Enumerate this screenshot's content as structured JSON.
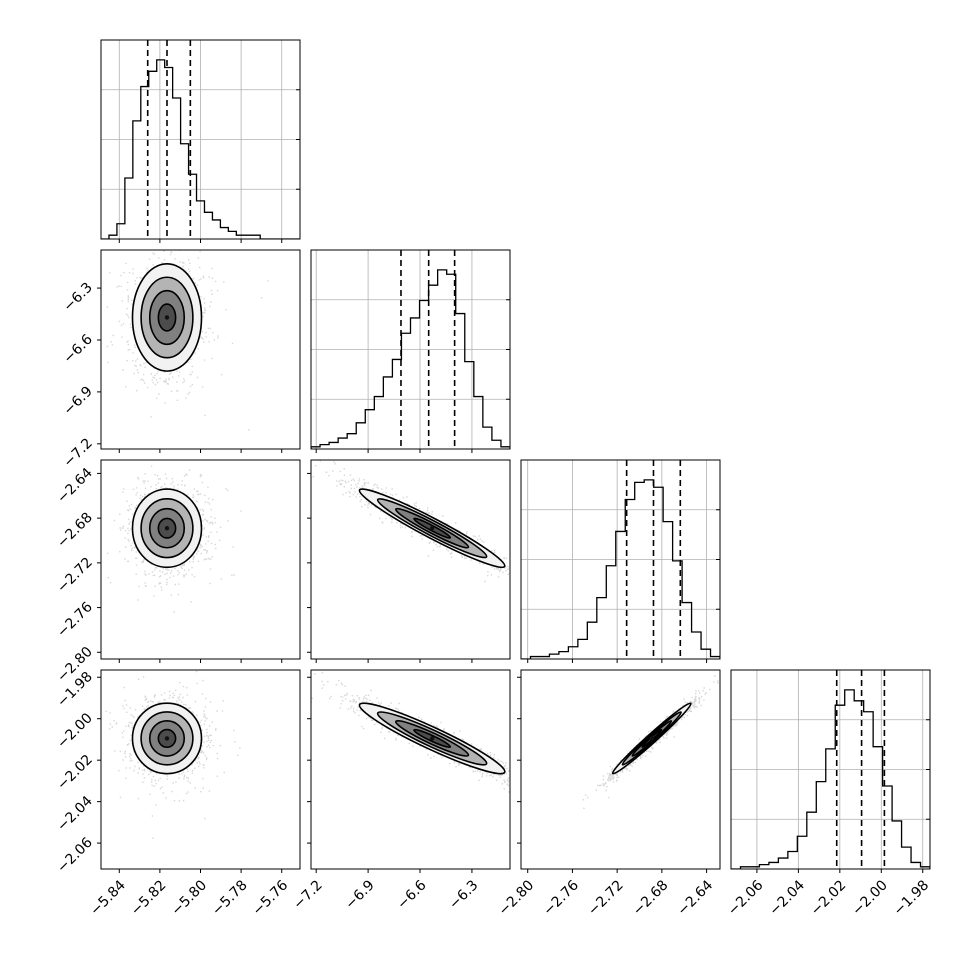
{
  "chart_data": {
    "type": "scatter",
    "subtype": "corner",
    "title": "",
    "grid": true,
    "parameters": [
      {
        "ticks": [
          -5.84,
          -5.82,
          -5.8,
          -5.78,
          -5.76
        ],
        "tick_labels": [
          "−5.84",
          "−5.82",
          "−5.80",
          "−5.78",
          "−5.76"
        ],
        "range": [
          -5.849,
          -5.751
        ],
        "quantiles": [
          -5.826,
          -5.8165,
          -5.805
        ],
        "histogram": [
          0,
          1,
          4,
          16,
          31,
          40,
          44,
          47,
          45,
          37,
          25,
          17,
          10,
          7,
          5,
          3,
          2,
          1,
          1,
          1,
          0,
          0,
          0,
          0,
          0
        ]
      },
      {
        "ticks": [
          -7.2,
          -6.9,
          -6.6,
          -6.3
        ],
        "tick_labels": [
          "−7.2",
          "−6.9",
          "−6.6",
          "−6.3"
        ],
        "range": [
          -7.23,
          -6.08
        ],
        "quantiles": [
          -6.71,
          -6.55,
          -6.4
        ],
        "histogram": [
          1,
          2,
          3,
          5,
          7,
          12,
          18,
          24,
          33,
          41,
          53,
          60,
          68,
          75,
          82,
          80,
          62,
          40,
          24,
          10,
          4,
          1
        ]
      },
      {
        "ticks": [
          -2.8,
          -2.76,
          -2.72,
          -2.68,
          -2.64
        ],
        "tick_labels": [
          "−2.80",
          "−2.76",
          "−2.72",
          "−2.68",
          "−2.64"
        ],
        "range": [
          -2.806,
          -2.628
        ],
        "quantiles": [
          -2.7115,
          -2.6875,
          -2.6635
        ],
        "histogram": [
          0,
          1,
          1,
          2,
          3,
          5,
          8,
          15,
          25,
          38,
          52,
          65,
          72,
          73,
          70,
          56,
          40,
          23,
          11,
          4,
          1
        ]
      },
      {
        "ticks": [
          -2.06,
          -2.04,
          -2.02,
          -2.0,
          -1.98
        ],
        "tick_labels": [
          "−2.06",
          "−2.04",
          "−2.02",
          "−2.00",
          "−1.98"
        ],
        "range": [
          -2.0725,
          -1.9765
        ],
        "quantiles": [
          -2.0215,
          -2.0095,
          -1.9985
        ],
        "histogram": [
          0,
          1,
          1,
          2,
          3,
          5,
          8,
          15,
          26,
          40,
          55,
          75,
          82,
          77,
          72,
          56,
          38,
          22,
          10,
          3,
          1
        ]
      }
    ],
    "pairs": [
      {
        "i": 1,
        "j": 0,
        "center": [
          -5.8165,
          -6.47
        ],
        "sd": [
          0.0085,
          0.155
        ],
        "rho": 0.0
      },
      {
        "i": 2,
        "j": 0,
        "center": [
          -5.8165,
          -2.689
        ],
        "sd": [
          0.0085,
          0.0175
        ],
        "rho": 0.0
      },
      {
        "i": 2,
        "j": 1,
        "center": [
          -6.53,
          -2.689
        ],
        "sd": [
          0.21,
          0.0175
        ],
        "rho": -0.96
      },
      {
        "i": 3,
        "j": 0,
        "center": [
          -5.8165,
          -2.0095
        ],
        "sd": [
          0.0085,
          0.0085
        ],
        "rho": 0.0
      },
      {
        "i": 3,
        "j": 1,
        "center": [
          -6.53,
          -2.0095
        ],
        "sd": [
          0.21,
          0.0085
        ],
        "rho": -0.94
      },
      {
        "i": 3,
        "j": 2,
        "center": [
          -2.689,
          -2.0095
        ],
        "sd": [
          0.0175,
          0.0085
        ],
        "rho": 0.985
      }
    ],
    "contour_levels": [
      0.5,
      1.0,
      1.5,
      2.0
    ]
  }
}
